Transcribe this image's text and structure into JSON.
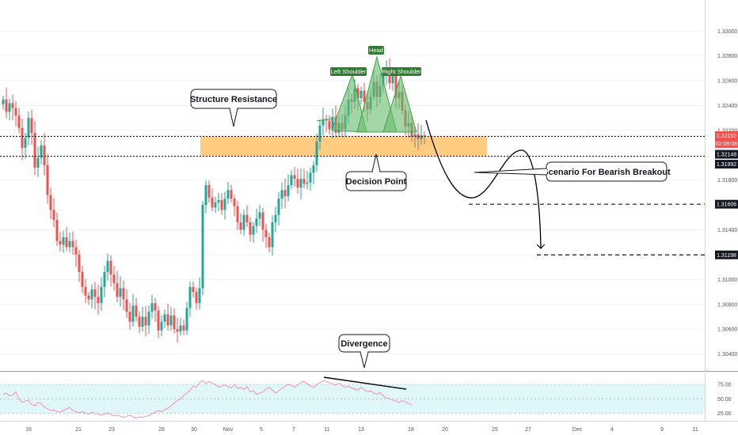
{
  "annotations": {
    "structure_resistance": "Structure Resistance",
    "decision_point": "Decision Point",
    "scenario": "Scenario For Bearish Breakout",
    "divergence": "Divergence",
    "left_shoulder": "Left Shoulder",
    "head": "Head",
    "right_shoulder": "Right Shoulder"
  },
  "price_axis": {
    "ticks": [
      "1.33000",
      "1.32800",
      "1.32600",
      "1.32400",
      "1.32200",
      "1.31800",
      "1.31400",
      "1.31200",
      "1.31000",
      "1.30800",
      "1.30600",
      "1.30400"
    ],
    "tags": [
      {
        "text": "1.32152",
        "color": "#ef5350"
      },
      {
        "text": "02:09:08",
        "color": "#ef5350"
      },
      {
        "text": "1.32148",
        "color": "#131722"
      },
      {
        "text": "1.31992",
        "color": "#131722"
      },
      {
        "text": "1.31606",
        "color": "#131722"
      },
      {
        "text": "1.31198",
        "color": "#131722"
      }
    ]
  },
  "rsi_axis": {
    "ticks": [
      "75.00",
      "50.00",
      "25.00"
    ]
  },
  "time_axis": {
    "ticks": [
      "16",
      "21",
      "23",
      "28",
      "30",
      "Nov",
      "5",
      "7",
      "11",
      "13",
      "18",
      "20",
      "25",
      "27",
      "Dec",
      "4",
      "9",
      "11"
    ]
  },
  "colors": {
    "bull": "#26a69a",
    "bear": "#ef5350",
    "zone_fill": "#ffb74d",
    "pattern_fill": "#66bb6a",
    "rsi_band": "#e0f7fa",
    "rsi_line": "#f48fb1"
  },
  "chart_data": {
    "type": "candlestick",
    "ylim": [
      1.3027,
      1.3325
    ],
    "zone": [
      1.31992,
      1.32152
    ],
    "levels": [
      1.32152,
      1.32148,
      1.31992,
      1.31606,
      1.31198
    ],
    "closes": [
      1.3245,
      1.3235,
      1.3242,
      1.3238,
      1.3232,
      1.3222,
      1.3206,
      1.3214,
      1.323,
      1.3218,
      1.319,
      1.3198,
      1.3208,
      1.3192,
      1.3168,
      1.3156,
      1.3148,
      1.3131,
      1.3128,
      1.3134,
      1.3126,
      1.3131,
      1.3126,
      1.312,
      1.3106,
      1.3094,
      1.3087,
      1.3084,
      1.3092,
      1.3086,
      1.3081,
      1.3094,
      1.3106,
      1.3115,
      1.3104,
      1.3097,
      1.3086,
      1.3093,
      1.3084,
      1.3074,
      1.3066,
      1.3079,
      1.307,
      1.3062,
      1.307,
      1.3063,
      1.3074,
      1.3081,
      1.3075,
      1.3059,
      1.3066,
      1.3072,
      1.3063,
      1.3071,
      1.306,
      1.3058,
      1.3063,
      1.3059,
      1.3077,
      1.3094,
      1.309,
      1.3081,
      1.3093,
      1.316,
      1.3176,
      1.3166,
      1.3158,
      1.3162,
      1.3164,
      1.3156,
      1.3165,
      1.3172,
      1.3165,
      1.3159,
      1.3146,
      1.314,
      1.3152,
      1.3146,
      1.3136,
      1.3143,
      1.3149,
      1.3154,
      1.314,
      1.3134,
      1.3126,
      1.3146,
      1.3152,
      1.3165,
      1.3172,
      1.3167,
      1.3176,
      1.3184,
      1.3181,
      1.3174,
      1.3181,
      1.3177,
      1.3178,
      1.3186,
      1.3192,
      1.3211,
      1.3224,
      1.3229,
      1.3228,
      1.3221,
      1.3231,
      1.3218,
      1.3226,
      1.3221,
      1.3232,
      1.3245,
      1.3243,
      1.3254,
      1.3246,
      1.3252,
      1.3243,
      1.3237,
      1.3247,
      1.3259,
      1.3247,
      1.3256,
      1.3266,
      1.3268,
      1.3258,
      1.3265,
      1.3246,
      1.3251,
      1.3236,
      1.3223,
      1.3226,
      1.3215,
      1.3217,
      1.3213,
      1.3216,
      1.3215
    ],
    "rsi": {
      "ylim": [
        15,
        90
      ],
      "levels": [
        75,
        50,
        25
      ],
      "values": [
        58,
        60,
        55,
        57,
        62,
        50,
        44,
        46,
        48,
        40,
        38,
        44,
        42,
        36,
        33,
        30,
        31,
        28,
        27,
        30,
        33,
        35,
        30,
        28,
        26,
        28,
        25,
        24,
        27,
        25,
        24,
        22,
        24,
        26,
        23,
        21,
        22,
        20,
        18,
        20,
        22,
        19,
        17,
        19,
        18,
        20,
        21,
        24,
        27,
        30,
        28,
        31,
        34,
        38,
        43,
        47,
        50,
        56,
        60,
        65,
        72,
        70,
        78,
        82,
        76,
        80,
        77,
        75,
        70,
        72,
        74,
        71,
        69,
        75,
        68,
        70,
        66,
        71,
        62,
        64,
        58,
        60,
        62,
        67,
        70,
        65,
        60,
        64,
        68,
        72,
        75,
        73,
        70,
        74,
        78,
        80,
        76,
        72,
        70,
        74,
        78,
        82,
        80,
        78,
        76,
        74,
        77,
        73,
        70,
        72,
        69,
        67,
        65,
        70,
        66,
        62,
        64,
        60,
        58,
        61,
        55,
        52,
        50,
        48,
        46,
        44,
        47,
        45,
        42,
        40
      ]
    }
  }
}
